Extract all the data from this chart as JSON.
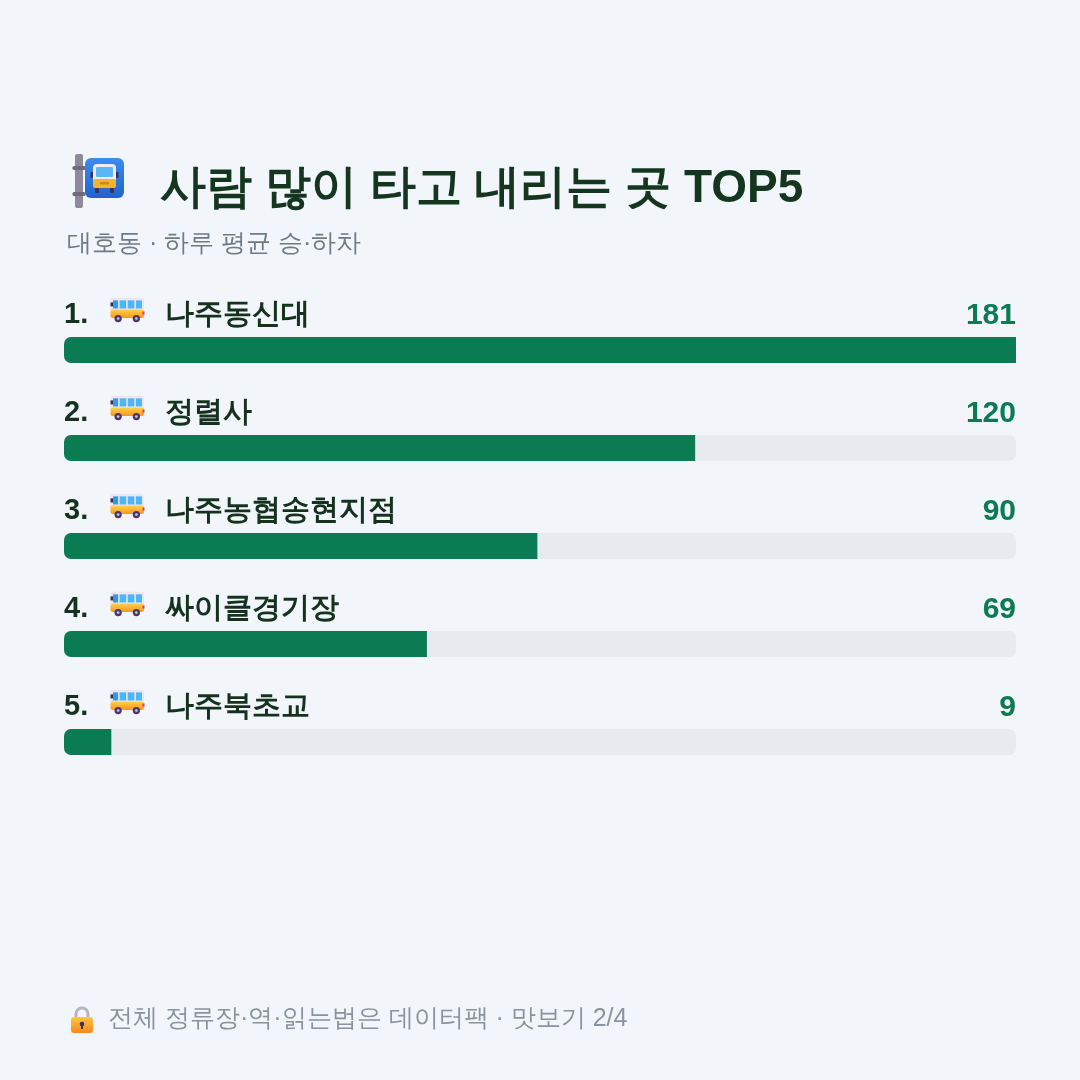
{
  "chart_data": {
    "type": "bar",
    "orientation": "horizontal",
    "title": "사람 많이 타고 내리는 곳 TOP5",
    "subtitle": "대호동 · 하루 평균 승·하차",
    "categories": [
      "1. 나주동신대",
      "2. 정렬사",
      "3. 나주농협송현지점",
      "4. 싸이클경기장",
      "5. 나주북초교"
    ],
    "values": [
      181,
      120,
      90,
      69,
      9
    ],
    "color": "#0b7b54",
    "data_labels": true,
    "annotations": [
      "전체 정류장·역·읽는법은 데이터팩 · 맛보기 2/4"
    ]
  }
}
